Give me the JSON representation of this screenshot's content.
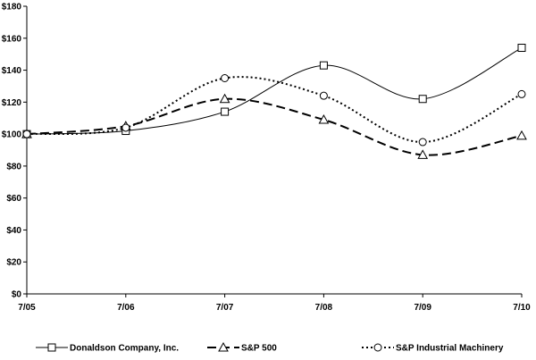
{
  "chart_data": {
    "type": "line",
    "title": "",
    "xlabel": "",
    "ylabel": "",
    "categories": [
      "7/05",
      "7/06",
      "7/07",
      "7/08",
      "7/09",
      "7/10"
    ],
    "ylim": [
      0,
      180
    ],
    "yticks": [
      "$0",
      "$20",
      "$40",
      "$60",
      "$80",
      "$100",
      "$120",
      "$140",
      "$160",
      "$180"
    ],
    "grid": false,
    "legend_position": "bottom",
    "series": [
      {
        "name": "Donaldson Company, Inc.",
        "values": [
          100,
          102,
          114,
          143,
          122,
          154
        ],
        "marker": "square",
        "line_style": "solid",
        "color": "#000000"
      },
      {
        "name": "S&P 500",
        "values": [
          100,
          105,
          122,
          109,
          87,
          99
        ],
        "marker": "triangle",
        "line_style": "dashed",
        "color": "#000000"
      },
      {
        "name": "S&P Industrial Machinery",
        "values": [
          100,
          104,
          135,
          124,
          95,
          125
        ],
        "marker": "circle",
        "line_style": "dotted",
        "color": "#000000"
      }
    ]
  }
}
